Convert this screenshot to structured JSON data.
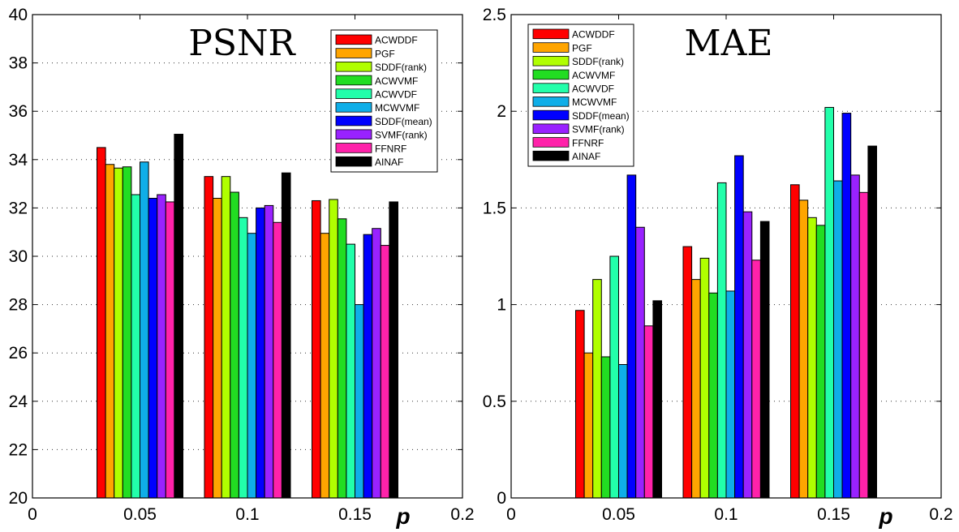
{
  "chart_data": [
    {
      "type": "bar",
      "title": "PSNR",
      "xlabel": "p",
      "ylabel": "",
      "xlim": [
        0,
        0.2
      ],
      "ylim": [
        20,
        40
      ],
      "xticks": [
        "0",
        "0.05",
        "0.1",
        "0.15",
        "0.2"
      ],
      "yticks": [
        "20",
        "22",
        "24",
        "26",
        "28",
        "30",
        "32",
        "34",
        "36",
        "38",
        "40"
      ],
      "categories": [
        0.05,
        0.1,
        0.15
      ],
      "grid": "y-dotted",
      "legend_position": "top-right",
      "series": [
        {
          "name": "ACWDDF",
          "color": "#ff0000",
          "values": [
            34.5,
            33.3,
            32.3
          ]
        },
        {
          "name": "PGF",
          "color": "#ffa500",
          "values": [
            33.8,
            32.4,
            30.95
          ]
        },
        {
          "name": "SDDF(rank)",
          "color": "#b0ff00",
          "values": [
            33.65,
            33.3,
            32.35
          ]
        },
        {
          "name": "ACWVMF",
          "color": "#22dd22",
          "values": [
            33.7,
            32.65,
            31.55
          ]
        },
        {
          "name": "ACWVDF",
          "color": "#22ffaa",
          "values": [
            32.55,
            31.6,
            30.5
          ]
        },
        {
          "name": "MCWVMF",
          "color": "#0faee8",
          "values": [
            33.9,
            30.95,
            28.0
          ]
        },
        {
          "name": "SDDF(mean)",
          "color": "#0000ff",
          "values": [
            32.4,
            32.0,
            30.9
          ]
        },
        {
          "name": "SVMF(rank)",
          "color": "#9922ff",
          "values": [
            32.55,
            32.1,
            31.15
          ]
        },
        {
          "name": "FFNRF",
          "color": "#ff22aa",
          "values": [
            32.25,
            31.4,
            30.45
          ]
        },
        {
          "name": "AINAF",
          "color": "#000000",
          "values": [
            35.05,
            33.45,
            32.25
          ]
        }
      ]
    },
    {
      "type": "bar",
      "title": "MAE",
      "xlabel": "p",
      "ylabel": "",
      "xlim": [
        0,
        0.2
      ],
      "ylim": [
        0,
        2.5
      ],
      "xticks": [
        "0",
        "0.05",
        "0.1",
        "0.15",
        "0.2"
      ],
      "yticks": [
        "0",
        "0.5",
        "1",
        "1.5",
        "2",
        "2.5"
      ],
      "categories": [
        0.05,
        0.1,
        0.15
      ],
      "grid": "y-dotted",
      "legend_position": "top-left",
      "series": [
        {
          "name": "ACWDDF",
          "color": "#ff0000",
          "values": [
            0.97,
            1.3,
            1.62
          ]
        },
        {
          "name": "PGF",
          "color": "#ffa500",
          "values": [
            0.75,
            1.13,
            1.54
          ]
        },
        {
          "name": "SDDF(rank)",
          "color": "#b0ff00",
          "values": [
            1.13,
            1.24,
            1.45
          ]
        },
        {
          "name": "ACWVMF",
          "color": "#22dd22",
          "values": [
            0.73,
            1.06,
            1.41
          ]
        },
        {
          "name": "ACWVDF",
          "color": "#22ffaa",
          "values": [
            1.25,
            1.63,
            2.02
          ]
        },
        {
          "name": "MCWVMF",
          "color": "#0faee8",
          "values": [
            0.69,
            1.07,
            1.64
          ]
        },
        {
          "name": "SDDF(mean)",
          "color": "#0000ff",
          "values": [
            1.67,
            1.77,
            1.99
          ]
        },
        {
          "name": "SVMF(rank)",
          "color": "#9922ff",
          "values": [
            1.4,
            1.48,
            1.67
          ]
        },
        {
          "name": "FFNRF",
          "color": "#ff22aa",
          "values": [
            0.89,
            1.23,
            1.58
          ]
        },
        {
          "name": "AINAF",
          "color": "#000000",
          "values": [
            1.02,
            1.43,
            1.82
          ]
        }
      ]
    }
  ]
}
